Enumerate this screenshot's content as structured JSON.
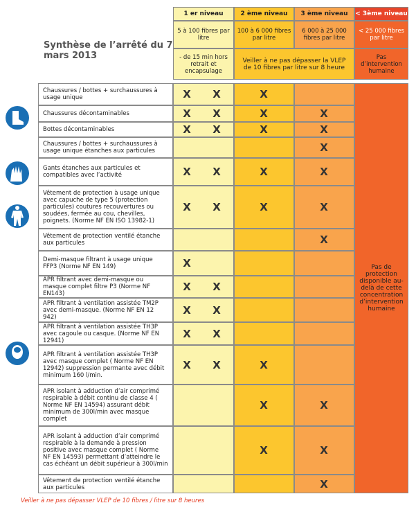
{
  "header": {
    "title": "Synthèse de l’arrêté du 7 mars 2013",
    "levels": [
      {
        "name": "1 er niveau",
        "range": "5 à 100 fibres par litre",
        "note": "- de 15 min hors retrait et encapsulage"
      },
      {
        "name": "2 ème niveau",
        "range": "100 à 6 000 fibres par litre"
      },
      {
        "name": "3 ème niveau",
        "range": "6 000 à 25 000 fibres par litre"
      },
      {
        "name": "< 3ème niveau",
        "range": "< 25 000 fibres par litre",
        "note": "Pas d’intervention humaine"
      }
    ],
    "shared_note": "Veiller à ne pas dépasser la VLEP de 10 fibres par litre sur 8 heure"
  },
  "rows": [
    {
      "text": "Chaussures / bottes + surchaussures à usage unique",
      "marks": [
        "X",
        "X",
        "X",
        null
      ]
    },
    {
      "text": "Chaussures décontaminables",
      "marks": [
        "X",
        "X",
        "X",
        "X"
      ]
    },
    {
      "text": "Bottes décontaminables",
      "marks": [
        "X",
        "X",
        "X",
        "X"
      ]
    },
    {
      "text": "Chaussures / bottes + surchaussures à usage unique étanches aux particules",
      "marks": [
        null,
        null,
        null,
        "X"
      ]
    },
    {
      "text": "Gants étanches aux particules et compatibles avec l’activité",
      "marks": [
        "X",
        "X",
        "X",
        "X"
      ]
    },
    {
      "text": "Vêtement de protection à usage unique avec capuche de type 5 (protection particules) coutures recouvertures ou soudées, fermée au cou, chevilles, poignets. (Norme NF EN ISO 13982-1)",
      "marks": [
        "X",
        "X",
        "X",
        "X"
      ]
    },
    {
      "text": "Vêtement de protection ventilé étanche aux particules",
      "marks": [
        null,
        null,
        null,
        "X"
      ]
    },
    {
      "text": "Demi-masque filtrant à usage unique FFP3 (Norme NF EN 149)",
      "marks": [
        "X",
        null,
        null,
        null
      ]
    },
    {
      "text": "APR filtrant avec demi-masque ou masque complet filtre P3 (Norme NF EN143)",
      "marks": [
        "X",
        "X",
        null,
        null
      ]
    },
    {
      "text": "APR filtrant à ventilation assistée TM2P avec demi-masque. (Norme NF EN 12 942)",
      "marks": [
        "X",
        "X",
        null,
        null
      ]
    },
    {
      "text": "APR filtrant à ventilation assistée TH3P avec cagoule ou casque. (Norme NF EN 12941)",
      "marks": [
        "X",
        "X",
        null,
        null
      ]
    },
    {
      "text": "APR filtrant à ventilation assistée TH3P avec masque complet ( Norme NF EN 12942) suppression permante avec débit minimum 160 l/min.",
      "marks": [
        "X",
        "X",
        "X",
        null
      ]
    },
    {
      "text": "APR isolant à adduction d’air comprimé respirable à débit continu de classe 4 ( Norme NF EN 14594) assurant débit minimum de 300l/min avec masque complet",
      "marks": [
        null,
        null,
        "X",
        "X"
      ]
    },
    {
      "text": "APR isolant à adduction d’air comprimé respirable à la demande à pression positive avec masque complet ( Norme NF EN 14593) permettant d’atteindre le cas échéant un débit supérieur à 300l/min",
      "marks": [
        null,
        null,
        "X",
        "X"
      ]
    },
    {
      "text": "Vêtement de protection ventilé étanche aux particules",
      "marks": [
        null,
        null,
        null,
        "X"
      ]
    }
  ],
  "level4_text": "Pas de protection disponible au-delà de cette concentration d’intervention humaine",
  "footer": "Veiller à ne pas dépasser VLEP de 10 fibres / litre sur 8 heures"
}
